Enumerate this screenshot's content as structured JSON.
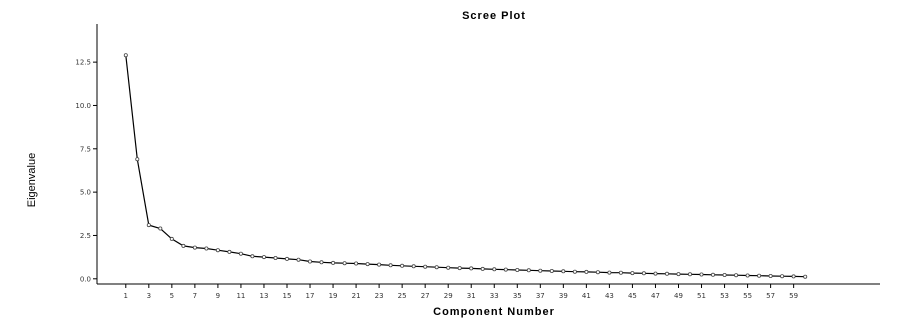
{
  "chart_data": {
    "type": "line",
    "title": "Scree Plot",
    "xlabel": "Component Number",
    "ylabel": "Eigenvalue",
    "x": [
      1,
      2,
      3,
      4,
      5,
      6,
      7,
      8,
      9,
      10,
      11,
      12,
      13,
      14,
      15,
      16,
      17,
      18,
      19,
      20,
      21,
      22,
      23,
      24,
      25,
      26,
      27,
      28,
      29,
      30,
      31,
      32,
      33,
      34,
      35,
      36,
      37,
      38,
      39,
      40,
      41,
      42,
      43,
      44,
      45,
      46,
      47,
      48,
      49,
      50,
      51,
      52,
      53,
      54,
      55,
      56,
      57,
      58,
      59,
      60
    ],
    "values": [
      12.9,
      6.9,
      3.1,
      2.9,
      2.3,
      1.9,
      1.8,
      1.75,
      1.65,
      1.55,
      1.45,
      1.3,
      1.25,
      1.2,
      1.15,
      1.1,
      1.0,
      0.95,
      0.92,
      0.9,
      0.88,
      0.85,
      0.82,
      0.78,
      0.75,
      0.72,
      0.7,
      0.67,
      0.64,
      0.62,
      0.6,
      0.57,
      0.55,
      0.53,
      0.51,
      0.49,
      0.47,
      0.45,
      0.43,
      0.41,
      0.4,
      0.38,
      0.36,
      0.35,
      0.33,
      0.32,
      0.3,
      0.29,
      0.27,
      0.26,
      0.25,
      0.23,
      0.22,
      0.21,
      0.19,
      0.18,
      0.16,
      0.15,
      0.14,
      0.12
    ],
    "xticks": [
      1,
      3,
      5,
      7,
      9,
      11,
      13,
      15,
      17,
      19,
      21,
      23,
      25,
      27,
      29,
      31,
      33,
      35,
      37,
      39,
      41,
      43,
      45,
      47,
      49,
      51,
      53,
      55,
      57,
      59
    ],
    "xtick_labels": [
      "1",
      "3",
      "5",
      "7",
      "9",
      "11",
      "13",
      "15",
      "17",
      "19",
      "21",
      "23",
      "25",
      "27",
      "29",
      "31",
      "33",
      "35",
      "37",
      "39",
      "41",
      "43",
      "45",
      "47",
      "49",
      "51",
      "53",
      "55",
      "57",
      "59"
    ],
    "yticks": [
      0,
      2.5,
      5,
      7.5,
      10,
      12.5
    ],
    "ytick_labels": [
      "0.0",
      "2.5",
      "5.0",
      "7.5",
      "10.0",
      "12.5"
    ],
    "xlim": [
      -1.5,
      66.5
    ],
    "ylim": [
      -0.3,
      14.7
    ],
    "grid": false,
    "legend": "none"
  }
}
